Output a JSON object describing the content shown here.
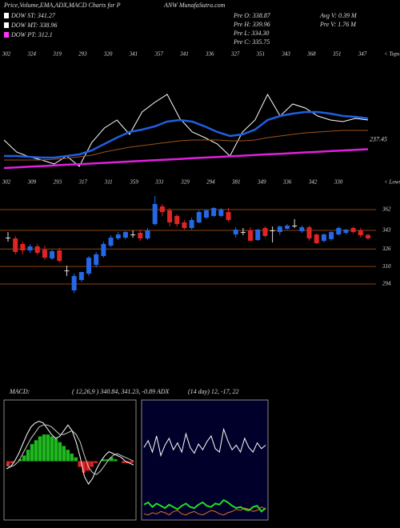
{
  "header": {
    "title_left": "Price,Volume,EMA,ADX,MACD Charts for P",
    "title_right": "ANW MunafaSutra.com"
  },
  "legend": [
    {
      "label": "DOW ST: 341.27",
      "color": "#ffffff"
    },
    {
      "label": "DOW MT: 338.96",
      "color": "#ffffff"
    },
    {
      "label": "DOW PT: 312.1",
      "color": "#ff33ff"
    }
  ],
  "stats": [
    [
      "Pre O: 338.87",
      "Pre H: 339.96",
      "Pre L: 334.30",
      "Pre C: 335.75"
    ],
    [
      "Avg V: 0.39 M",
      "Pre V: 1.76  M"
    ]
  ],
  "chart_data": [
    {
      "type": "line",
      "ylim": [
        180,
        420
      ],
      "tops": [
        302,
        324,
        319,
        293,
        320,
        341,
        357,
        341,
        336,
        327,
        351,
        343,
        368,
        351,
        347
      ],
      "tops_label": "< Tops",
      "lows": [
        302,
        309,
        293,
        317,
        311,
        359,
        331,
        329,
        294,
        381,
        349,
        336,
        342,
        330
      ],
      "lows_label": "< Lows",
      "end_label": 237.45,
      "series": [
        {
          "color": "#ffffff",
          "values": [
            257.1,
            231.4,
            221.1,
            214.3,
            205.7,
            222.9,
            200.6,
            252,
            282.8,
            300,
            269.1,
            317.1,
            337.7,
            354.8,
            303.4,
            274.3,
            262.3,
            248.6,
            222.9,
            274.3,
            300,
            354.8,
            308.6,
            334.3,
            325.7,
            308.6,
            300,
            296.6,
            303.4,
            300
          ]
        },
        {
          "color": "#1f5fe0",
          "values": [
            222.9,
            222.9,
            221.1,
            219.4,
            219.4,
            222.9,
            226.3,
            234.8,
            248.6,
            262.3,
            274.3,
            279.4,
            286.3,
            296.6,
            300,
            296.6,
            286.3,
            274.3,
            265.7,
            269.1,
            279.4,
            300,
            308.6,
            313.7,
            317.1,
            317.1,
            313.7,
            308.6,
            306.8,
            303.4
          ]
        },
        {
          "color": "#a0521a",
          "values": [
            214.3,
            214.3,
            214.3,
            214.3,
            216,
            217.7,
            221.1,
            224.6,
            231.4,
            236.6,
            241.7,
            245.1,
            248.6,
            252,
            255.4,
            257.1,
            257.1,
            257.1,
            255.4,
            255.4,
            257.1,
            262.3,
            265.7,
            269.1,
            272.6,
            274.3,
            276,
            277.7,
            277.7,
            277.7
          ]
        },
        {
          "color": "#e020e0",
          "values": [
            197.1,
            198.5,
            199.9,
            201.3,
            202.7,
            204.1,
            205.4,
            206.8,
            208.2,
            209.6,
            211,
            212.4,
            213.8,
            215.2,
            216.6,
            218,
            219.4,
            220.8,
            222.2,
            223.6,
            225,
            226.4,
            227.7,
            229.1,
            230.5,
            231.9,
            233.3,
            234.7,
            236.1,
            237.45
          ]
        }
      ]
    },
    {
      "type": "candlestick",
      "ylim": [
        281.6,
        378.1
      ],
      "yticks": [
        362,
        343,
        326,
        310,
        294
      ],
      "grid": true,
      "grid_color": "#8a4414",
      "up_color": "#2468e8",
      "down_color": "#e02424",
      "doji_color": "#dddddd",
      "open": [
        336.4,
        335.7,
        330.6,
        324.7,
        328.4,
        325.4,
        317.4,
        324.7,
        306.4,
        288.2,
        297.7,
        303.5,
        311.5,
        319.6,
        329.1,
        335.7,
        336.4,
        339.3,
        340.8,
        335.7,
        348.8,
        364.9,
        361.3,
        356.2,
        350.3,
        345.2,
        350.3,
        354.7,
        356.2,
        356.2,
        359.8,
        339.3,
        341.5,
        343,
        334.2,
        345.2,
        343,
        341.5,
        344.5,
        347.4,
        342.2,
        345.9,
        339.3,
        333.5,
        335,
        339.3,
        340.8,
        345.2,
        343,
        338.87
      ],
      "high": [
        341.5,
        337.9,
        332.8,
        330.6,
        330.6,
        329.1,
        325.4,
        326.9,
        310.8,
        303.5,
        305,
        319.6,
        323.3,
        332.8,
        338.6,
        341.5,
        342.2,
        343,
        343.7,
        345.2,
        374.4,
        367.1,
        363.5,
        357.7,
        352.5,
        354.7,
        361.3,
        362,
        364.2,
        363.5,
        363.5,
        345.9,
        345.2,
        345.9,
        344.5,
        346.6,
        346.6,
        347.4,
        348.8,
        353.3,
        347.4,
        347.4,
        340.1,
        340.1,
        342.2,
        346.6,
        344.5,
        346.6,
        345.2,
        339.96
      ],
      "low": [
        332.8,
        321.1,
        321.1,
        322.5,
        320.6,
        315.9,
        315.9,
        313.7,
        301.3,
        285.9,
        296,
        301.3,
        309,
        318.1,
        327.6,
        334.2,
        335,
        336.4,
        333.5,
        334.2,
        347.4,
        356.2,
        346.6,
        346.6,
        343.7,
        343.7,
        349.5,
        353.3,
        355.5,
        355,
        351,
        336.4,
        338.6,
        333.5,
        333.5,
        336.4,
        332,
        338.6,
        343.7,
        345.2,
        340.8,
        333.5,
        330.6,
        332,
        333.5,
        338.6,
        339.3,
        340.1,
        336.4,
        334.3
      ],
      "close": [
        336.4,
        323.3,
        324.7,
        328.4,
        322.5,
        318.1,
        324,
        315.2,
        306.4,
        301.3,
        305,
        318.1,
        321.1,
        330.6,
        336.4,
        339.3,
        341.5,
        339.3,
        335.7,
        343,
        367.1,
        359.8,
        350.3,
        348.8,
        345.2,
        352.5,
        359.8,
        361.3,
        363.5,
        362,
        352.5,
        343.7,
        341.5,
        333.5,
        343.7,
        337.9,
        343,
        346.6,
        347.4,
        347.4,
        345.9,
        335.7,
        331.3,
        339.3,
        341.5,
        345.2,
        343.7,
        341.5,
        338.6,
        335.75
      ]
    },
    {
      "type": "macd",
      "title": "MACD:",
      "subtitle": "( 12,26,9 ) 340.84, 341.23, -0.89 ADX",
      "ylim": [
        -30,
        30
      ],
      "histogram": {
        "color": "#1fb81f",
        "values": [
          -2,
          -1,
          0,
          1,
          3,
          6,
          9,
          11,
          13,
          14,
          14,
          13,
          12,
          10,
          8,
          6,
          4,
          2,
          -3,
          -6,
          -5,
          -3,
          -1,
          0,
          1,
          1,
          2,
          1,
          0,
          -1,
          -1,
          -1
        ]
      },
      "negative_color": "#e02424",
      "series": [
        {
          "color": "#ffffff",
          "values": [
            -4,
            -3,
            0,
            4,
            9,
            14,
            18,
            20,
            21,
            20,
            17,
            14,
            12,
            13,
            16,
            19,
            16,
            10,
            2,
            -8,
            -12,
            -9,
            -4,
            0,
            3,
            5,
            4,
            3,
            2,
            0,
            -1,
            -2
          ]
        },
        {
          "color": "#cccccc",
          "values": [
            -2,
            -3,
            -2,
            0,
            4,
            8,
            12,
            15,
            18,
            19,
            19,
            18,
            16,
            14,
            14,
            15,
            16,
            14,
            10,
            3,
            -3,
            -6,
            -7,
            -5,
            -2,
            1,
            3,
            4,
            3,
            2,
            1,
            0
          ]
        }
      ]
    },
    {
      "type": "adx",
      "title": "(14 day) 12, -17, 22",
      "ylim": [
        0,
        100
      ],
      "series": [
        {
          "color": "#ffffff",
          "values": [
            62,
            68,
            58,
            72,
            55,
            64,
            70,
            60,
            66,
            58,
            74,
            62,
            57,
            65,
            60,
            67,
            72,
            61,
            58,
            78,
            68,
            60,
            64,
            58,
            70,
            62,
            58,
            66,
            61,
            64
          ]
        },
        {
          "color": "#22dd22",
          "values": [
            12,
            14,
            10,
            13,
            11,
            9,
            12,
            10,
            8,
            11,
            13,
            10,
            9,
            12,
            14,
            11,
            10,
            13,
            12,
            16,
            14,
            11,
            9,
            10,
            8,
            7,
            10,
            11,
            6,
            9
          ]
        },
        {
          "color": "#e07020",
          "values": [
            4,
            3,
            5,
            4,
            6,
            5,
            3,
            6,
            7,
            4,
            3,
            5,
            6,
            4,
            3,
            5,
            7,
            6,
            4,
            3,
            5,
            6,
            8,
            7,
            9,
            8,
            6,
            7,
            10,
            8
          ]
        }
      ]
    }
  ]
}
